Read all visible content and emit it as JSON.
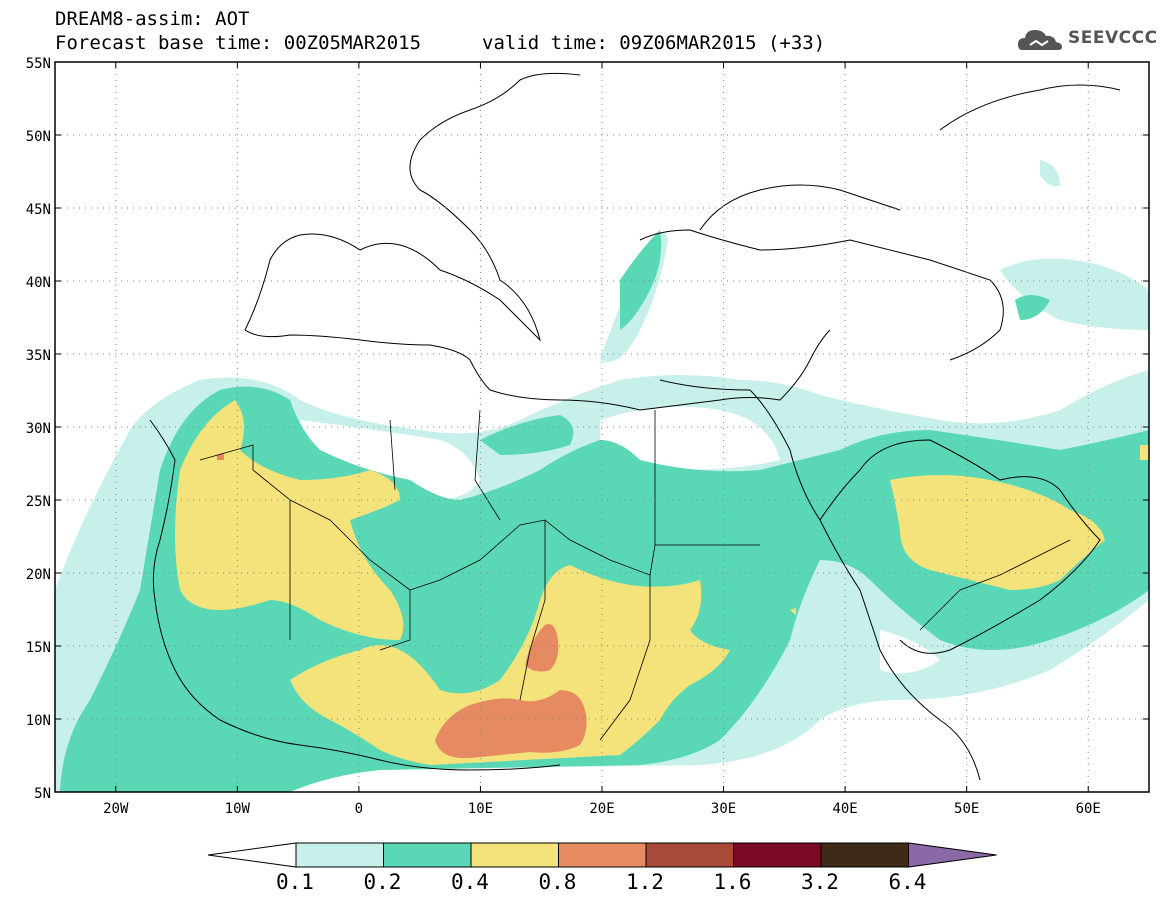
{
  "header": {
    "title": "DREAM8-assim: AOT",
    "base_time": "Forecast base time: 00Z05MAR2015",
    "valid_time": "valid time: 09Z06MAR2015 (+33)"
  },
  "logo": {
    "text": "SEEVCCC",
    "icon": "cloud-icon"
  },
  "map": {
    "lon_range": [
      -25,
      65
    ],
    "lat_range": [
      5,
      55
    ],
    "lat_ticks": [
      "55N",
      "50N",
      "45N",
      "40N",
      "35N",
      "30N",
      "25N",
      "20N",
      "15N",
      "10N",
      "5N"
    ],
    "lon_ticks": [
      "20W",
      "10W",
      "0",
      "10E",
      "20E",
      "30E",
      "40E",
      "50E",
      "60E"
    ],
    "grid": "dotted"
  },
  "colorbar": {
    "labels": [
      "0.1",
      "0.2",
      "0.4",
      "0.8",
      "1.2",
      "1.6",
      "3.2",
      "6.4"
    ],
    "colors": [
      "#ffffff",
      "#c7f0ea",
      "#5ad8b6",
      "#f4e37a",
      "#e68a62",
      "#a84a3a",
      "#7a0a26",
      "#3e2a17",
      "#8a6aa6"
    ]
  }
}
